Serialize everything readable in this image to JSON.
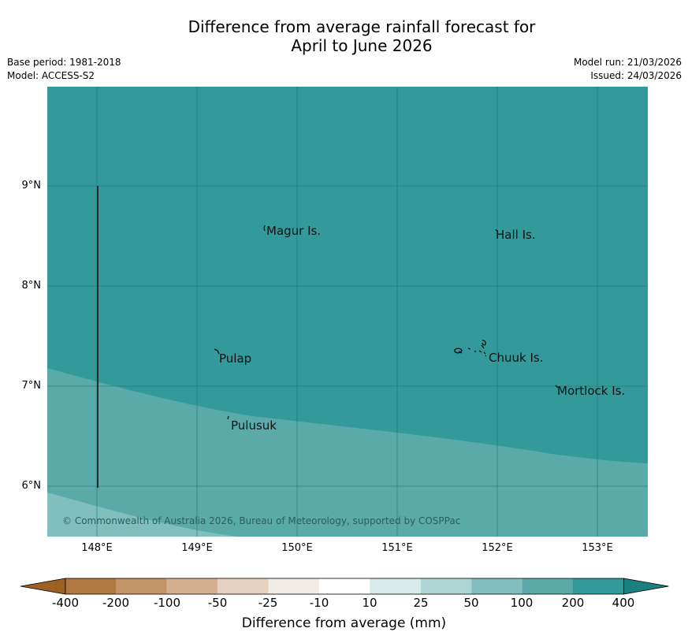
{
  "title": {
    "line1": "Difference from average rainfall forecast for",
    "line2": "April to June 2026"
  },
  "meta": {
    "base_period": "Base period: 1981-2018",
    "model": "Model: ACCESS-S2",
    "model_run": "Model run: 21/03/2026",
    "issued": "Issued: 24/03/2026"
  },
  "axes": {
    "lat_labels": [
      "9°N",
      "8°N",
      "7°N",
      "6°N"
    ],
    "lon_labels": [
      "148°E",
      "149°E",
      "150°E",
      "151°E",
      "152°E",
      "153°E"
    ]
  },
  "places": [
    "Magur Is.",
    "Hall Is.",
    "Pulap",
    "Chuuk Is.",
    "Mortlock Is.",
    "Pulusuk"
  ],
  "copyright": "© Commonwealth of Australia 2026, Bureau of Meteorology, supported by COSPPac",
  "colorbar": {
    "title": "Difference from average (mm)",
    "ticks": [
      "-400",
      "-200",
      "-100",
      "-50",
      "-25",
      "-10",
      "10",
      "25",
      "50",
      "100",
      "200",
      "400"
    ],
    "colors": [
      "#9e5f23",
      "#b07941",
      "#c3946a",
      "#d4b08f",
      "#e4d1c0",
      "#f1ede6",
      "#ffffff",
      "#d6ebea",
      "#acd5d4",
      "#80bfbe",
      "#5aaaaa",
      "#33999a",
      "#1c7f7f"
    ]
  },
  "legend_range_colors": {
    "high": "#33999a",
    "mid": "#5aaaaa",
    "low": "#80bfbe"
  }
}
